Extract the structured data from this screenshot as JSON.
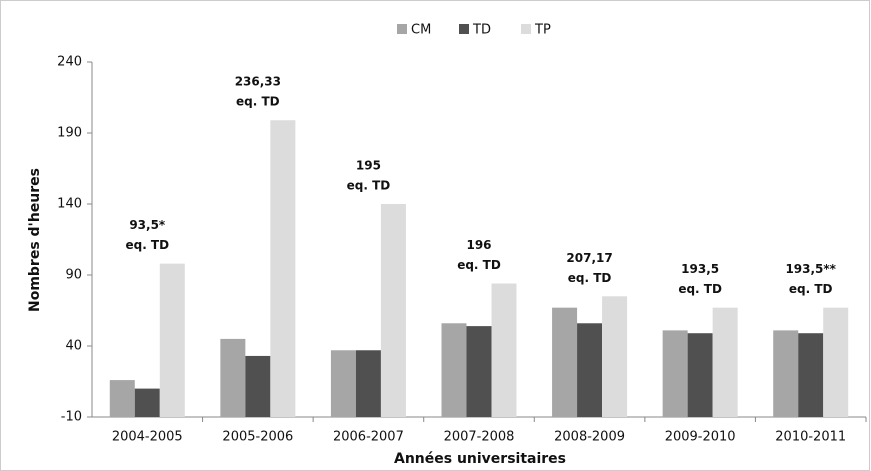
{
  "chart_data": {
    "type": "bar",
    "x_label": "Années universitaires",
    "y_label": "Nombres d'heures",
    "categories": [
      "2004-2005",
      "2005-2006",
      "2006-2007",
      "2007-2008",
      "2008-2009",
      "2009-2010",
      "2010-2011"
    ],
    "series": [
      {
        "name": "CM",
        "color": "#a6a6a6",
        "values": [
          16,
          45,
          37,
          56,
          67,
          51,
          51
        ]
      },
      {
        "name": "TD",
        "color": "#505050",
        "values": [
          10,
          33,
          37,
          54,
          56,
          49,
          49
        ]
      },
      {
        "name": "TP",
        "color": "#dcdcdc",
        "values": [
          98,
          199,
          140,
          84,
          75,
          67,
          67
        ]
      }
    ],
    "annotations": [
      [
        "93,5*",
        "eq. TD"
      ],
      [
        "236,33",
        "eq. TD"
      ],
      [
        "195",
        "eq. TD"
      ],
      [
        "196",
        "eq. TD"
      ],
      [
        "207,17",
        "eq. TD"
      ],
      [
        "193,5",
        "eq. TD"
      ],
      [
        "193,5**",
        "eq. TD"
      ]
    ],
    "ylim": [
      -10,
      240
    ],
    "yticks": [
      -10,
      40,
      90,
      140,
      190,
      240
    ],
    "grid": false,
    "legend": "top"
  }
}
